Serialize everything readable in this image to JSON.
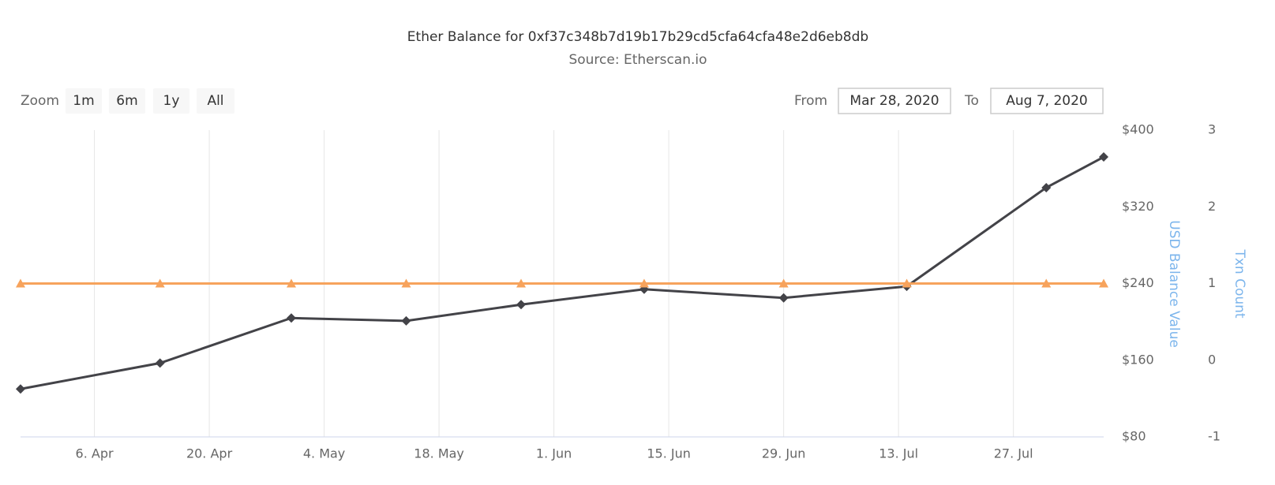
{
  "chart_data": {
    "type": "line",
    "title": "Ether Balance for 0xf37c348b7d19b17b29cd5cfa64cfa48e2d6eb8db",
    "subtitle": "Source: Etherscan.io",
    "range_selector": {
      "zoom_label": "Zoom",
      "buttons": [
        "1m",
        "6m",
        "1y",
        "All"
      ],
      "from_label": "From",
      "from": "Mar 28, 2020",
      "to_label": "To",
      "to": "Aug 7, 2020"
    },
    "x": [
      "2020-03-28",
      "2020-04-14",
      "2020-04-30",
      "2020-05-14",
      "2020-05-28",
      "2020-06-12",
      "2020-06-29",
      "2020-07-14",
      "2020-07-31",
      "2020-08-07"
    ],
    "xlim": [
      "2020-03-28",
      "2020-08-07"
    ],
    "xticks": [
      {
        "value": "2020-04-06",
        "label": "6. Apr"
      },
      {
        "value": "2020-04-20",
        "label": "20. Apr"
      },
      {
        "value": "2020-05-04",
        "label": "4. May"
      },
      {
        "value": "2020-05-18",
        "label": "18. May"
      },
      {
        "value": "2020-06-01",
        "label": "1. Jun"
      },
      {
        "value": "2020-06-15",
        "label": "15. Jun"
      },
      {
        "value": "2020-06-29",
        "label": "29. Jun"
      },
      {
        "value": "2020-07-13",
        "label": "13. Jul"
      },
      {
        "value": "2020-07-27",
        "label": "27. Jul"
      }
    ],
    "y_label": "USD Balance Value",
    "y2_label": "Txn Count",
    "ylim": [
      80,
      400
    ],
    "yticks": [
      {
        "value": 80,
        "label": "$80"
      },
      {
        "value": 160,
        "label": "$160"
      },
      {
        "value": 240,
        "label": "$240"
      },
      {
        "value": 320,
        "label": "$320"
      },
      {
        "value": 400,
        "label": "$400"
      }
    ],
    "y2lim": [
      -1,
      3
    ],
    "y2ticks": [
      -1,
      0,
      1,
      2,
      3
    ],
    "grid": true,
    "series": [
      {
        "color": "#434348",
        "marker": "diamond",
        "values": [
          130,
          157,
          204,
          201,
          218,
          234,
          225,
          237,
          340,
          372
        ]
      },
      {
        "color": "#f7a35c",
        "marker": "triangle",
        "axis": "y2",
        "values": [
          1,
          1,
          1,
          1,
          1,
          1,
          1,
          1,
          1,
          1
        ]
      }
    ]
  }
}
